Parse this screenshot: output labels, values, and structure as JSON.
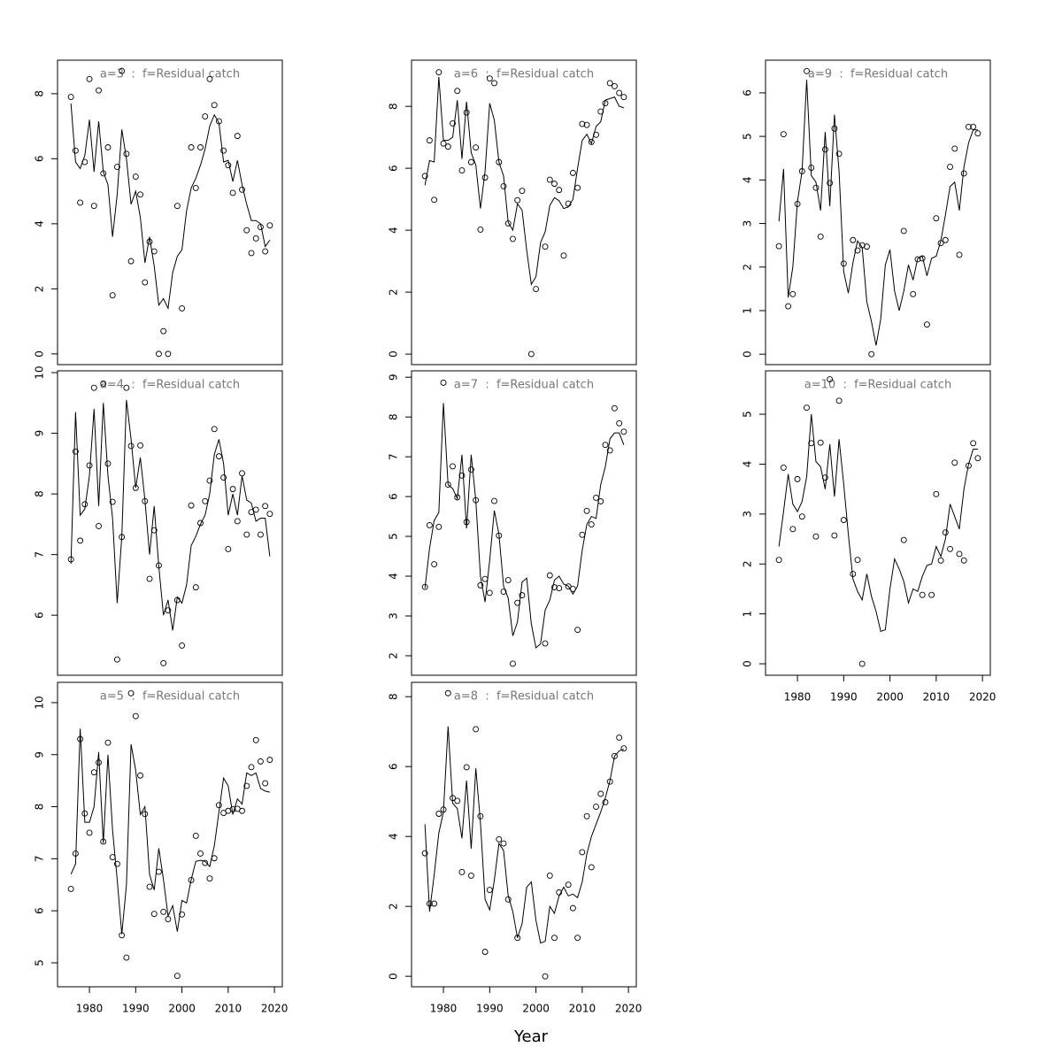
{
  "xlabel": "Year",
  "x": [
    1976,
    1977,
    1978,
    1979,
    1980,
    1981,
    1982,
    1983,
    1984,
    1985,
    1986,
    1987,
    1988,
    1989,
    1990,
    1991,
    1992,
    1993,
    1994,
    1995,
    1996,
    1997,
    1998,
    1999,
    2000,
    2001,
    2002,
    2003,
    2004,
    2005,
    2006,
    2007,
    2008,
    2009,
    2010,
    2011,
    2012,
    2013,
    2014,
    2015,
    2016,
    2017,
    2018,
    2019
  ],
  "xlim": [
    1973.1,
    2021.7
  ],
  "chart_data": [
    {
      "type": "line",
      "title": "a=3  :  f=Residual catch",
      "ylim": [
        -0.33,
        9.03
      ],
      "yticks": [
        0,
        2,
        4,
        6,
        8
      ],
      "series": [
        {
          "mark": "point",
          "color": "#000000",
          "values": [
            7.9,
            6.25,
            4.65,
            5.9,
            8.45,
            4.55,
            8.1,
            5.55,
            6.35,
            1.8,
            5.75,
            8.7,
            6.15,
            2.85,
            5.45,
            4.9,
            2.2,
            3.45,
            3.15,
            0,
            0.7,
            0,
            null,
            4.55,
            1.4,
            null,
            6.35,
            5.1,
            6.35,
            7.3,
            8.45,
            7.65,
            7.15,
            6.25,
            5.8,
            4.95,
            6.7,
            5.05,
            3.8,
            3.1,
            3.55,
            3.9,
            3.15,
            3.95
          ]
        },
        {
          "mark": "line",
          "color": "#000000",
          "values": [
            7.7,
            5.9,
            5.7,
            6.1,
            7.2,
            5.6,
            7.15,
            5.6,
            5.2,
            3.6,
            4.9,
            6.9,
            6.0,
            4.6,
            5.0,
            4.2,
            2.8,
            3.6,
            2.7,
            1.5,
            1.7,
            1.4,
            2.5,
            3.0,
            3.2,
            4.4,
            5.1,
            5.4,
            5.8,
            6.3,
            7.0,
            7.35,
            7.1,
            5.9,
            5.95,
            5.3,
            5.95,
            5.2,
            4.6,
            4.1,
            4.1,
            4.0,
            3.3,
            3.5
          ]
        }
      ]
    },
    {
      "type": "line",
      "title": "a=4  :  f=Residual catch",
      "ylim": [
        5.01,
        10.03
      ],
      "yticks": [
        6,
        7,
        8,
        9,
        10
      ],
      "series": [
        {
          "mark": "point",
          "color": "#000000",
          "values": [
            6.92,
            8.7,
            7.23,
            7.83,
            8.47,
            9.75,
            7.47,
            9.82,
            8.5,
            7.87,
            5.27,
            7.29,
            9.75,
            8.79,
            8.1,
            8.8,
            7.88,
            6.6,
            7.4,
            6.82,
            5.21,
            6.08,
            null,
            6.25,
            5.5,
            null,
            7.81,
            6.46,
            7.52,
            7.88,
            8.22,
            9.07,
            8.62,
            8.27,
            7.09,
            8.08,
            7.55,
            8.34,
            7.33,
            7.7,
            7.74,
            7.33,
            7.8,
            7.67
          ]
        },
        {
          "mark": "line",
          "color": "#000000",
          "values": [
            6.85,
            9.35,
            7.65,
            7.75,
            8.3,
            9.4,
            7.8,
            9.5,
            8.3,
            7.6,
            6.2,
            7.3,
            9.55,
            8.9,
            8.1,
            8.6,
            7.9,
            7.0,
            7.8,
            6.8,
            6.0,
            6.25,
            5.75,
            6.3,
            6.2,
            6.5,
            7.15,
            7.3,
            7.5,
            7.65,
            8.0,
            8.65,
            8.9,
            8.5,
            7.65,
            8.0,
            7.65,
            8.3,
            7.9,
            7.85,
            7.55,
            7.6,
            7.6,
            6.97
          ]
        }
      ]
    },
    {
      "type": "line",
      "title": "a=5  :  f=Residual catch",
      "ylim": [
        4.54,
        10.39
      ],
      "yticks": [
        5,
        6,
        7,
        8,
        9,
        10
      ],
      "xticks": [
        1980,
        1990,
        2000,
        2010,
        2020
      ],
      "series": [
        {
          "mark": "point",
          "color": "#000000",
          "values": [
            6.42,
            7.1,
            9.3,
            7.87,
            7.5,
            8.66,
            8.85,
            7.33,
            9.23,
            7.03,
            6.9,
            5.53,
            5.1,
            10.18,
            9.74,
            8.6,
            7.86,
            6.46,
            5.94,
            6.75,
            5.98,
            5.84,
            null,
            4.75,
            5.93,
            null,
            6.59,
            7.44,
            7.1,
            6.92,
            6.62,
            7.01,
            8.03,
            7.88,
            7.92,
            7.95,
            7.96,
            7.92,
            8.4,
            8.76,
            9.28,
            8.87,
            8.45,
            8.9
          ]
        },
        {
          "mark": "line",
          "color": "#000000",
          "values": [
            6.7,
            6.9,
            9.5,
            7.7,
            7.7,
            8.0,
            9.05,
            7.3,
            9.0,
            7.55,
            6.6,
            5.55,
            6.5,
            9.2,
            8.7,
            7.85,
            8.0,
            6.7,
            6.4,
            7.2,
            6.6,
            5.9,
            6.1,
            5.6,
            6.2,
            6.15,
            6.6,
            6.95,
            6.97,
            6.95,
            6.85,
            7.25,
            7.9,
            8.55,
            8.4,
            7.85,
            8.15,
            8.05,
            8.65,
            8.6,
            8.65,
            8.35,
            8.3,
            8.28
          ]
        }
      ]
    },
    {
      "type": "line",
      "title": "a=6  :  f=Residual catch",
      "ylim": [
        -0.34,
        9.49
      ],
      "yticks": [
        0,
        2,
        4,
        6,
        8
      ],
      "series": [
        {
          "mark": "point",
          "color": "#000000",
          "values": [
            5.75,
            6.9,
            4.98,
            9.1,
            6.8,
            6.7,
            7.45,
            8.5,
            5.93,
            7.8,
            6.2,
            6.67,
            4.02,
            5.7,
            8.9,
            8.75,
            6.2,
            5.42,
            4.22,
            3.72,
            4.97,
            5.27,
            null,
            0,
            2.1,
            null,
            3.47,
            5.63,
            5.5,
            5.3,
            3.18,
            4.86,
            5.85,
            5.37,
            7.43,
            7.4,
            6.85,
            7.08,
            7.83,
            8.1,
            8.75,
            8.65,
            8.43,
            8.3
          ]
        },
        {
          "mark": "line",
          "color": "#000000",
          "values": [
            5.45,
            6.25,
            6.2,
            8.95,
            6.9,
            6.9,
            7.0,
            8.2,
            6.3,
            8.15,
            6.5,
            6.1,
            4.7,
            5.9,
            8.1,
            7.55,
            6.2,
            5.75,
            4.25,
            4.0,
            4.85,
            4.65,
            3.35,
            2.25,
            2.5,
            3.6,
            3.95,
            4.8,
            5.05,
            4.95,
            4.7,
            4.75,
            5.0,
            6.0,
            6.9,
            7.1,
            6.8,
            7.35,
            7.5,
            8.2,
            8.25,
            8.3,
            8.0,
            7.95
          ]
        }
      ]
    },
    {
      "type": "line",
      "title": "a=7  :  f=Residual catch",
      "ylim": [
        1.51,
        9.16
      ],
      "yticks": [
        2,
        3,
        4,
        5,
        6,
        7,
        8,
        9
      ],
      "series": [
        {
          "mark": "point",
          "color": "#000000",
          "values": [
            3.73,
            5.28,
            4.3,
            5.24,
            8.86,
            6.3,
            6.76,
            5.98,
            6.53,
            5.36,
            6.68,
            5.91,
            3.77,
            3.93,
            3.58,
            5.89,
            5.02,
            3.61,
            3.9,
            1.8,
            3.33,
            3.52,
            null,
            null,
            null,
            null,
            2.31,
            4.02,
            3.72,
            3.7,
            null,
            3.74,
            3.68,
            2.65,
            5.04,
            5.64,
            5.3,
            5.97,
            5.88,
            7.3,
            7.16,
            8.22,
            7.84,
            7.63
          ]
        },
        {
          "mark": "line",
          "color": "#000000",
          "values": [
            3.7,
            4.7,
            5.4,
            5.6,
            8.35,
            6.3,
            6.2,
            5.95,
            7.05,
            5.2,
            7.05,
            5.9,
            4.0,
            3.35,
            4.4,
            5.65,
            5.05,
            3.75,
            3.45,
            2.5,
            2.85,
            3.85,
            3.95,
            2.8,
            2.2,
            2.3,
            3.15,
            3.4,
            3.9,
            4.0,
            3.8,
            3.75,
            3.55,
            3.75,
            4.65,
            5.3,
            5.5,
            5.45,
            6.3,
            6.75,
            7.45,
            7.6,
            7.6,
            7.3
          ]
        }
      ]
    },
    {
      "type": "line",
      "title": "a=8  :  f=Residual catch",
      "ylim": [
        -0.3,
        8.41
      ],
      "yticks": [
        0,
        2,
        4,
        6,
        8
      ],
      "xticks": [
        1980,
        1990,
        2000,
        2010,
        2020
      ],
      "series": [
        {
          "mark": "point",
          "color": "#000000",
          "values": [
            3.52,
            2.08,
            2.08,
            4.65,
            4.77,
            8.1,
            5.1,
            5.02,
            2.98,
            5.98,
            2.88,
            7.07,
            4.58,
            0.7,
            2.47,
            null,
            3.92,
            3.8,
            2.2,
            null,
            1.1,
            null,
            null,
            null,
            null,
            null,
            0,
            2.88,
            1.1,
            2.4,
            null,
            2.62,
            1.95,
            1.1,
            3.55,
            4.58,
            3.12,
            4.85,
            5.22,
            4.98,
            5.57,
            6.3,
            6.83,
            6.52
          ]
        },
        {
          "mark": "line",
          "color": "#000000",
          "values": [
            4.35,
            1.85,
            2.9,
            4.1,
            4.7,
            7.15,
            4.95,
            4.8,
            3.95,
            5.6,
            3.65,
            5.95,
            4.4,
            2.2,
            1.9,
            2.75,
            3.8,
            3.6,
            2.3,
            1.85,
            1.1,
            1.5,
            2.55,
            2.7,
            1.6,
            0.95,
            1.0,
            2.0,
            1.8,
            2.3,
            2.55,
            2.3,
            2.35,
            2.25,
            2.7,
            3.5,
            4.0,
            4.35,
            4.7,
            5.1,
            5.6,
            6.3,
            6.45,
            6.5
          ]
        }
      ]
    },
    {
      "type": "line",
      "title": "a=9  :  f=Residual catch",
      "ylim": [
        -0.24,
        6.75
      ],
      "yticks": [
        0,
        1,
        2,
        3,
        4,
        5,
        6
      ],
      "series": [
        {
          "mark": "point",
          "color": "#000000",
          "values": [
            2.48,
            5.05,
            1.1,
            1.38,
            3.45,
            4.2,
            6.5,
            4.28,
            3.82,
            2.7,
            4.7,
            3.93,
            5.18,
            4.6,
            2.08,
            null,
            2.62,
            2.38,
            2.5,
            2.47,
            0,
            null,
            null,
            null,
            null,
            null,
            null,
            2.83,
            null,
            1.38,
            2.18,
            2.2,
            0.68,
            null,
            3.12,
            2.55,
            2.62,
            4.3,
            4.72,
            2.28,
            4.15,
            5.22,
            5.22,
            5.07
          ]
        },
        {
          "mark": "line",
          "color": "#000000",
          "values": [
            3.05,
            4.25,
            1.3,
            2.0,
            3.5,
            4.2,
            6.3,
            4.1,
            3.95,
            3.3,
            5.1,
            3.4,
            5.5,
            4.2,
            1.9,
            1.4,
            2.1,
            2.6,
            2.45,
            1.2,
            0.75,
            0.2,
            0.8,
            2.05,
            2.4,
            1.45,
            1.0,
            1.45,
            2.05,
            1.7,
            2.2,
            2.25,
            1.8,
            2.2,
            2.25,
            2.6,
            3.2,
            3.85,
            3.95,
            3.3,
            4.3,
            4.85,
            5.15,
            5.15
          ]
        }
      ]
    },
    {
      "type": "line",
      "title": "a=10  :  f=Residual catch",
      "ylim": [
        -0.23,
        5.87
      ],
      "yticks": [
        0,
        1,
        2,
        3,
        4,
        5
      ],
      "xticks": [
        1980,
        1990,
        2000,
        2010,
        2020
      ],
      "series": [
        {
          "mark": "point",
          "color": "#000000",
          "values": [
            2.08,
            3.93,
            null,
            2.7,
            3.7,
            2.95,
            5.13,
            4.42,
            2.55,
            4.43,
            3.73,
            5.7,
            2.57,
            5.27,
            2.88,
            null,
            1.8,
            2.08,
            0,
            null,
            null,
            null,
            null,
            null,
            null,
            null,
            null,
            2.48,
            null,
            null,
            null,
            1.38,
            null,
            1.38,
            3.4,
            2.07,
            2.63,
            2.3,
            4.03,
            2.2,
            2.07,
            3.97,
            4.42,
            4.12
          ]
        },
        {
          "mark": "line",
          "color": "#000000",
          "values": [
            2.35,
            3.05,
            3.8,
            3.2,
            3.05,
            3.25,
            3.75,
            5.0,
            4.05,
            3.95,
            3.5,
            4.4,
            3.35,
            4.5,
            3.6,
            2.6,
            1.7,
            1.45,
            1.28,
            1.8,
            1.35,
            1.05,
            0.65,
            0.68,
            1.5,
            2.1,
            1.9,
            1.65,
            1.22,
            1.5,
            1.45,
            1.75,
            1.97,
            2.0,
            2.35,
            2.15,
            2.5,
            3.2,
            2.95,
            2.7,
            3.5,
            4.0,
            4.3,
            4.3
          ]
        }
      ]
    }
  ]
}
